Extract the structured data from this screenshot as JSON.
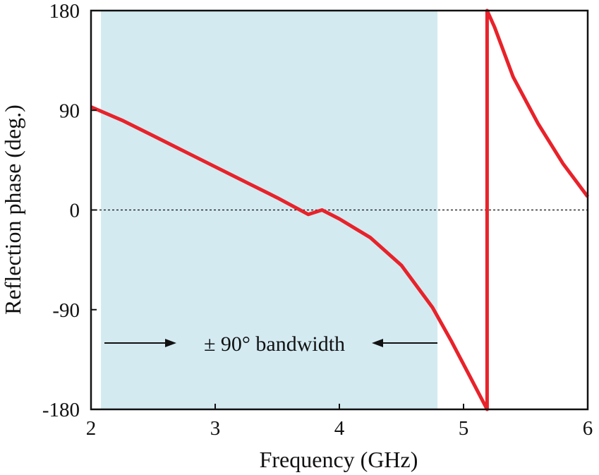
{
  "chart_data": {
    "type": "line",
    "xlabel": "Frequency (GHz)",
    "ylabel": "Reflection phase (deg.)",
    "xlim": [
      2,
      6
    ],
    "ylim": [
      -180,
      180
    ],
    "xticks": [
      2,
      3,
      4,
      5,
      6
    ],
    "yticks": [
      180,
      90,
      0,
      -90,
      -180
    ],
    "xtick_labels": [
      "2",
      "3",
      "4",
      "5",
      "6"
    ],
    "ytick_labels": [
      "180",
      "90",
      "0",
      "-90",
      "-180"
    ],
    "grid": false,
    "reference_line": {
      "y": 0,
      "style": "dotted"
    },
    "band": {
      "x_start": 2.08,
      "x_end": 4.79,
      "color": "#d3eaf1",
      "label": "± 90° bandwidth"
    },
    "series": [
      {
        "color": "#e8222a",
        "x": [
          2.0,
          2.25,
          2.5,
          2.75,
          3.0,
          3.25,
          3.5,
          3.75,
          3.86,
          4.0,
          4.25,
          4.5,
          4.75,
          4.9,
          5.05,
          5.19,
          5.19,
          5.25,
          5.4,
          5.6,
          5.8,
          6.0
        ],
        "y": [
          93,
          81,
          67,
          53,
          39,
          25,
          11,
          -4,
          0,
          -8,
          -25,
          -50,
          -88,
          -118,
          -150,
          -180,
          180,
          165,
          120,
          78,
          42,
          12
        ]
      }
    ]
  }
}
